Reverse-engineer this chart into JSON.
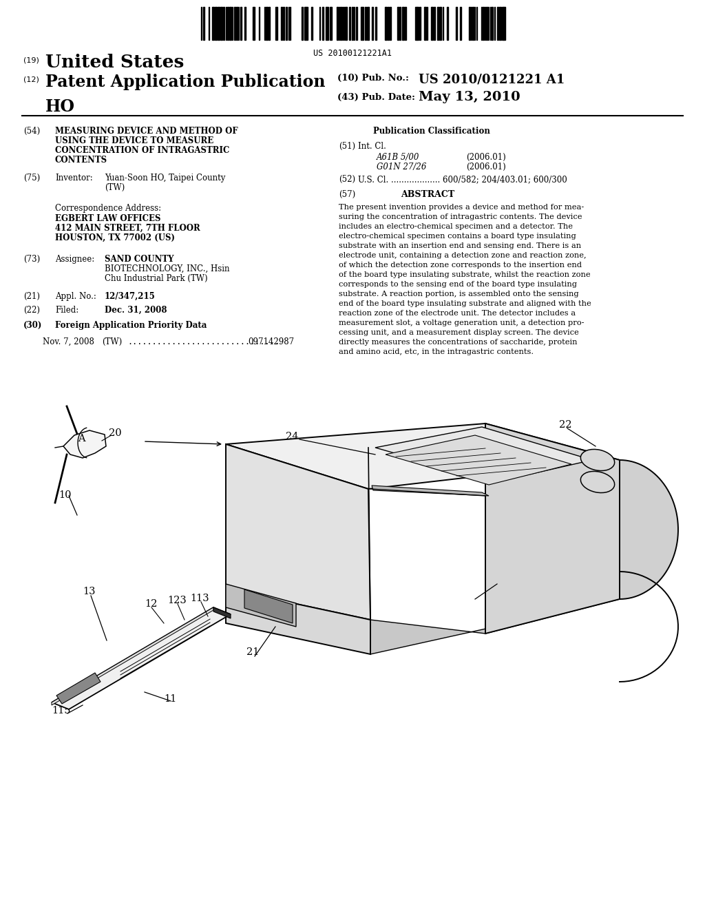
{
  "bg_color": "#ffffff",
  "barcode_text": "US 20100121221A1",
  "abstract_text_lines": [
    "The present invention provides a device and method for mea-",
    "suring the concentration of intragastric contents. The device",
    "includes an electro-chemical specimen and a detector. The",
    "electro-chemical specimen contains a board type insulating",
    "substrate with an insertion end and sensing end. There is an",
    "electrode unit, containing a detection zone and reaction zone,",
    "of which the detection zone corresponds to the insertion end",
    "of the board type insulating substrate, whilst the reaction zone",
    "corresponds to the sensing end of the board type insulating",
    "substrate. A reaction portion, is assembled onto the sensing",
    "end of the board type insulating substrate and aligned with the",
    "reaction zone of the electrode unit. The detector includes a",
    "measurement slot, a voltage generation unit, a detection pro-",
    "cessing unit, and a measurement display screen. The device",
    "directly measures the concentrations of saccharide, protein",
    "and amino acid, etc, in the intragastric contents."
  ]
}
